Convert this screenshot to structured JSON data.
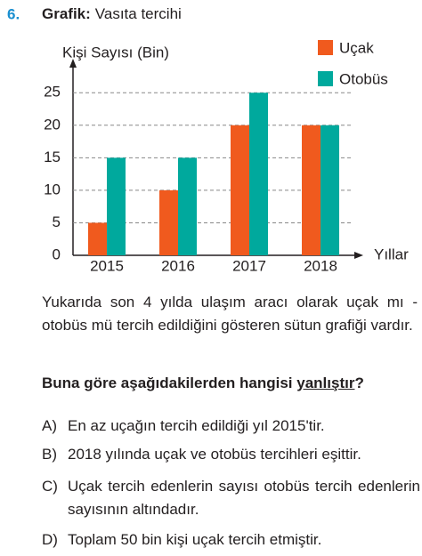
{
  "question_number": "6.",
  "title_bold": "Grafik:",
  "title_rest": "Vasıta tercihi",
  "chart_data": {
    "type": "bar",
    "y_label": "Kişi Sayısı (Bin)",
    "x_label": "Yıllar",
    "categories": [
      "2015",
      "2016",
      "2017",
      "2018"
    ],
    "series": [
      {
        "name": "Uçak",
        "color": "#f05a1e",
        "values": [
          5,
          10,
          20,
          20
        ]
      },
      {
        "name": "Otobüs",
        "color": "#00a99d",
        "values": [
          15,
          15,
          25,
          20
        ]
      }
    ],
    "ylim": [
      0,
      29
    ],
    "yticks": [
      0,
      5,
      10,
      15,
      20,
      25
    ],
    "grid": true,
    "legend": "top-right"
  },
  "paragraph": "Yukarıda son 4 yılda ulaşım aracı olarak uçak mı - otobüs mü tercih edildiğini gösteren sütun grafiği vardır.",
  "question": {
    "before": "Buna göre aşağıdakilerden hangisi ",
    "underlined": "yanlıştır",
    "after": "?"
  },
  "options": [
    {
      "letter": "A)",
      "text": "En az uçağın tercih edildiği yıl 2015'tir."
    },
    {
      "letter": "B)",
      "text": "2018 yılında uçak ve otobüs tercihleri eşittir."
    },
    {
      "letter": "C)",
      "text": "Uçak tercih edenlerin sayısı otobüs tercih edenlerin sayısının altındadır."
    },
    {
      "letter": "D)",
      "text": "Toplam 50 bin kişi uçak tercih etmiştir."
    }
  ]
}
